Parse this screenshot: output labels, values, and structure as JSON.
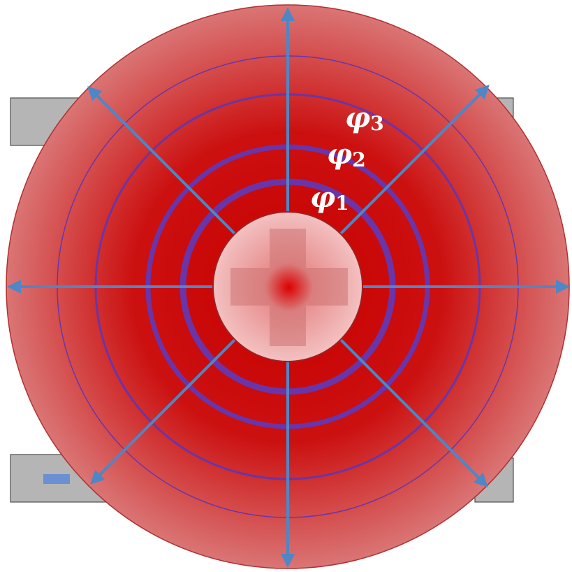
{
  "labels": [
    {
      "symbol": "φ",
      "index": "3"
    },
    {
      "symbol": "φ",
      "index": "2"
    },
    {
      "symbol": "φ",
      "index": "1"
    }
  ]
}
